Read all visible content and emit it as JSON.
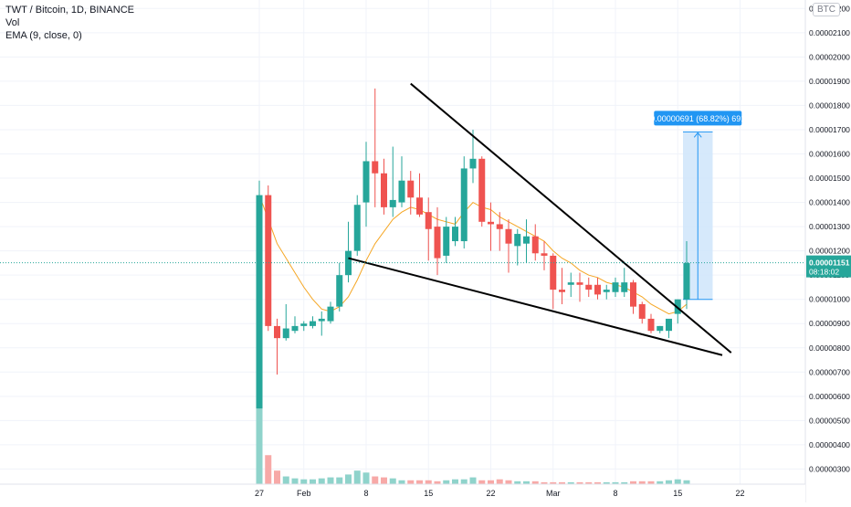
{
  "legend": {
    "symbol_line": "TWT / Bitcoin, 1D, BINANCE",
    "volume_line": "Vol",
    "ema_line": "EMA (9, close, 0)"
  },
  "currency_badge": "BTC",
  "colors": {
    "up": "#26a69a",
    "down": "#ef5350",
    "up_volume": "#8fd3cb",
    "down_volume": "#f7a9a7",
    "ema": "#f5a623",
    "trendline": "#000000",
    "measure_fill": "#cfe5fa",
    "measure_line": "#2196f3",
    "measure_label_bg": "#2196f3",
    "price_label_bg": "#26a69a",
    "grid": "#f0f3fa"
  },
  "chart_data": {
    "type": "candlestick",
    "title": "TWT / Bitcoin, 1D, BINANCE",
    "x_tick_labels": [
      "27",
      "Feb",
      "8",
      "15",
      "22",
      "Mar",
      "8",
      "15",
      "22"
    ],
    "y_tick_labels": [
      "0.00000300",
      "0.00000400",
      "0.00000500",
      "0.00000600",
      "0.00000700",
      "0.00000800",
      "0.00000900",
      "0.00001000",
      "0.00001100",
      "0.00001200",
      "0.00001300",
      "0.00001400",
      "0.00001500",
      "0.00001600",
      "0.00001700",
      "0.00001800",
      "0.00001900",
      "0.00002000",
      "0.00002100",
      "0.00002200"
    ],
    "ylim": [
      2.3e-06,
      2.22e-05
    ],
    "candles": [
      {
        "date": "2021-01-27",
        "o": 5.5e-06,
        "h": 1.49e-05,
        "l": 5.5e-06,
        "c": 1.43e-05
      },
      {
        "date": "2021-01-28",
        "o": 1.43e-05,
        "h": 1.47e-05,
        "l": 8.7e-06,
        "c": 8.9e-06
      },
      {
        "date": "2021-01-29",
        "o": 8.9e-06,
        "h": 9.2e-06,
        "l": 6.9e-06,
        "c": 8.4e-06
      },
      {
        "date": "2021-01-30",
        "o": 8.4e-06,
        "h": 9.8e-06,
        "l": 8.3e-06,
        "c": 8.8e-06
      },
      {
        "date": "2021-01-31",
        "o": 8.7e-06,
        "h": 9.3e-06,
        "l": 8.6e-06,
        "c": 8.9e-06
      },
      {
        "date": "2021-02-01",
        "o": 8.9e-06,
        "h": 9.1e-06,
        "l": 8.7e-06,
        "c": 9e-06
      },
      {
        "date": "2021-02-02",
        "o": 8.9e-06,
        "h": 9.3e-06,
        "l": 8.8e-06,
        "c": 9.1e-06
      },
      {
        "date": "2021-02-03",
        "o": 9.1e-06,
        "h": 9.5e-06,
        "l": 8.5e-06,
        "c": 9.2e-06
      },
      {
        "date": "2021-02-04",
        "o": 9.1e-06,
        "h": 9.9e-06,
        "l": 9e-06,
        "c": 9.7e-06
      },
      {
        "date": "2021-02-05",
        "o": 9.7e-06,
        "h": 1.15e-05,
        "l": 9.5e-06,
        "c": 1.1e-05
      },
      {
        "date": "2021-02-06",
        "o": 1.1e-05,
        "h": 1.32e-05,
        "l": 1.07e-05,
        "c": 1.2e-05
      },
      {
        "date": "2021-02-07",
        "o": 1.2e-05,
        "h": 1.43e-05,
        "l": 1.18e-05,
        "c": 1.39e-05
      },
      {
        "date": "2021-02-08",
        "o": 1.4e-05,
        "h": 1.65e-05,
        "l": 1.3e-05,
        "c": 1.57e-05
      },
      {
        "date": "2021-02-09",
        "o": 1.57e-05,
        "h": 1.87e-05,
        "l": 1.38e-05,
        "c": 1.52e-05
      },
      {
        "date": "2021-02-10",
        "o": 1.52e-05,
        "h": 1.58e-05,
        "l": 1.35e-05,
        "c": 1.38e-05
      },
      {
        "date": "2021-02-11",
        "o": 1.38e-05,
        "h": 1.63e-05,
        "l": 1.34e-05,
        "c": 1.41e-05
      },
      {
        "date": "2021-02-12",
        "o": 1.4e-05,
        "h": 1.59e-05,
        "l": 1.38e-05,
        "c": 1.49e-05
      },
      {
        "date": "2021-02-13",
        "o": 1.49e-05,
        "h": 1.53e-05,
        "l": 1.35e-05,
        "c": 1.42e-05
      },
      {
        "date": "2021-02-14",
        "o": 1.42e-05,
        "h": 1.52e-05,
        "l": 1.34e-05,
        "c": 1.35e-05
      },
      {
        "date": "2021-02-15",
        "o": 1.36e-05,
        "h": 1.42e-05,
        "l": 1.16e-05,
        "c": 1.29e-05
      },
      {
        "date": "2021-02-16",
        "o": 1.3e-05,
        "h": 1.38e-05,
        "l": 1.1e-05,
        "c": 1.17e-05
      },
      {
        "date": "2021-02-17",
        "o": 1.18e-05,
        "h": 1.34e-05,
        "l": 1.15e-05,
        "c": 1.3e-05
      },
      {
        "date": "2021-02-18",
        "o": 1.24e-05,
        "h": 1.34e-05,
        "l": 1.22e-05,
        "c": 1.3e-05
      },
      {
        "date": "2021-02-19",
        "o": 1.24e-05,
        "h": 1.59e-05,
        "l": 1.21e-05,
        "c": 1.54e-05
      },
      {
        "date": "2021-02-20",
        "o": 1.54e-05,
        "h": 1.7e-05,
        "l": 1.48e-05,
        "c": 1.58e-05
      },
      {
        "date": "2021-02-21",
        "o": 1.58e-05,
        "h": 1.59e-05,
        "l": 1.3e-05,
        "c": 1.32e-05
      },
      {
        "date": "2021-02-22",
        "o": 1.32e-05,
        "h": 1.4e-05,
        "l": 1.2e-05,
        "c": 1.31e-05
      },
      {
        "date": "2021-02-23",
        "o": 1.31e-05,
        "h": 1.36e-05,
        "l": 1.2e-05,
        "c": 1.29e-05
      },
      {
        "date": "2021-02-24",
        "o": 1.29e-05,
        "h": 1.33e-05,
        "l": 1.11e-05,
        "c": 1.23e-05
      },
      {
        "date": "2021-02-25",
        "o": 1.22e-05,
        "h": 1.29e-05,
        "l": 1.14e-05,
        "c": 1.27e-05
      },
      {
        "date": "2021-02-26",
        "o": 1.23e-05,
        "h": 1.33e-05,
        "l": 1.15e-05,
        "c": 1.26e-05
      },
      {
        "date": "2021-02-27",
        "o": 1.26e-05,
        "h": 1.31e-05,
        "l": 1.16e-05,
        "c": 1.19e-05
      },
      {
        "date": "2021-02-28",
        "o": 1.19e-05,
        "h": 1.24e-05,
        "l": 1.12e-05,
        "c": 1.18e-05
      },
      {
        "date": "2021-03-01",
        "o": 1.18e-05,
        "h": 1.19e-05,
        "l": 9.6e-06,
        "c": 1.04e-05
      },
      {
        "date": "2021-03-02",
        "o": 1.04e-05,
        "h": 1.13e-05,
        "l": 9.8e-06,
        "c": 1.03e-05
      },
      {
        "date": "2021-03-03",
        "o": 1.06e-05,
        "h": 1.11e-05,
        "l": 1.01e-05,
        "c": 1.07e-05
      },
      {
        "date": "2021-03-04",
        "o": 1.07e-05,
        "h": 1.11e-05,
        "l": 9.9e-06,
        "c": 1.06e-05
      },
      {
        "date": "2021-03-05",
        "o": 1.06e-05,
        "h": 1.09e-05,
        "l": 1.01e-05,
        "c": 1.04e-05
      },
      {
        "date": "2021-03-06",
        "o": 1.06e-05,
        "h": 1.09e-05,
        "l": 1e-05,
        "c": 1.02e-05
      },
      {
        "date": "2021-03-07",
        "o": 1.03e-05,
        "h": 1.06e-05,
        "l": 1e-05,
        "c": 1.04e-05
      },
      {
        "date": "2021-03-08",
        "o": 1.03e-05,
        "h": 1.09e-05,
        "l": 1.01e-05,
        "c": 1.07e-05
      },
      {
        "date": "2021-03-09",
        "o": 1.03e-05,
        "h": 1.13e-05,
        "l": 1.01e-05,
        "c": 1.07e-05
      },
      {
        "date": "2021-03-10",
        "o": 1.07e-05,
        "h": 1.08e-05,
        "l": 9.4e-06,
        "c": 9.7e-06
      },
      {
        "date": "2021-03-11",
        "o": 9.8e-06,
        "h": 9.9e-06,
        "l": 9e-06,
        "c": 9.2e-06
      },
      {
        "date": "2021-03-12",
        "o": 9.2e-06,
        "h": 9.4e-06,
        "l": 8.6e-06,
        "c": 8.7e-06
      },
      {
        "date": "2021-03-13",
        "o": 8.7e-06,
        "h": 8.9e-06,
        "l": 8.6e-06,
        "c": 8.9e-06
      },
      {
        "date": "2021-03-14",
        "o": 8.7e-06,
        "h": 9.1e-06,
        "l": 8.4e-06,
        "c": 9.2e-06
      },
      {
        "date": "2021-03-15",
        "o": 9.4e-06,
        "h": 1e-05,
        "l": 9e-06,
        "c": 1e-05
      },
      {
        "date": "2021-03-16",
        "o": 1e-05,
        "h": 1.24e-05,
        "l": 9.6e-06,
        "c": 1.15e-05
      }
    ],
    "volume": [
      85,
      30,
      14,
      8,
      6,
      5,
      5,
      6,
      7,
      7,
      10,
      14,
      12,
      8,
      7,
      6,
      4,
      4,
      4,
      4,
      3,
      4,
      5,
      5,
      7,
      4,
      4,
      5,
      4,
      3,
      3,
      3,
      2,
      2,
      2,
      2,
      2,
      2,
      2,
      2,
      2,
      2,
      3,
      3,
      3,
      3,
      4,
      5,
      4
    ],
    "ema": {
      "label": "EMA (9, close, 0)",
      "values": [
        1.43e-05,
        1.33e-05,
        1.23e-05,
        1.17e-05,
        1.11e-05,
        1.05e-05,
        1e-05,
        9.6e-06,
        9.5e-06,
        9.7e-06,
        1.01e-05,
        1.08e-05,
        1.16e-05,
        1.23e-05,
        1.28e-05,
        1.33e-05,
        1.36e-05,
        1.38e-05,
        1.37e-05,
        1.35e-05,
        1.33e-05,
        1.32e-05,
        1.31e-05,
        1.36e-05,
        1.4e-05,
        1.38e-05,
        1.37e-05,
        1.34e-05,
        1.32e-05,
        1.3e-05,
        1.28e-05,
        1.26e-05,
        1.24e-05,
        1.2e-05,
        1.17e-05,
        1.15e-05,
        1.12e-05,
        1.1e-05,
        1.09e-05,
        1.07e-05,
        1.06e-05,
        1.05e-05,
        1.03e-05,
        1.01e-05,
        9.8e-06,
        9.6e-06,
        9.4e-06,
        9.5e-06,
        9.8e-06
      ]
    },
    "trendlines": [
      {
        "name": "upper",
        "from": {
          "date": "2021-02-13",
          "price": 1.89e-05
        },
        "to": {
          "date": "2021-03-21",
          "price": 7.8e-06
        }
      },
      {
        "name": "lower",
        "from": {
          "date": "2021-02-06",
          "price": 1.17e-05
        },
        "to": {
          "date": "2021-03-20",
          "price": 7.7e-06
        }
      }
    ],
    "measure": {
      "from_date": "2021-03-16",
      "to_date": "2021-03-18",
      "low": 1e-05,
      "high": 1.691e-05,
      "label": "0.00000691 (68.82%) 691"
    },
    "last_price": {
      "value": 1.151e-05,
      "label": "0.00001151",
      "countdown": "08:18:02"
    }
  }
}
